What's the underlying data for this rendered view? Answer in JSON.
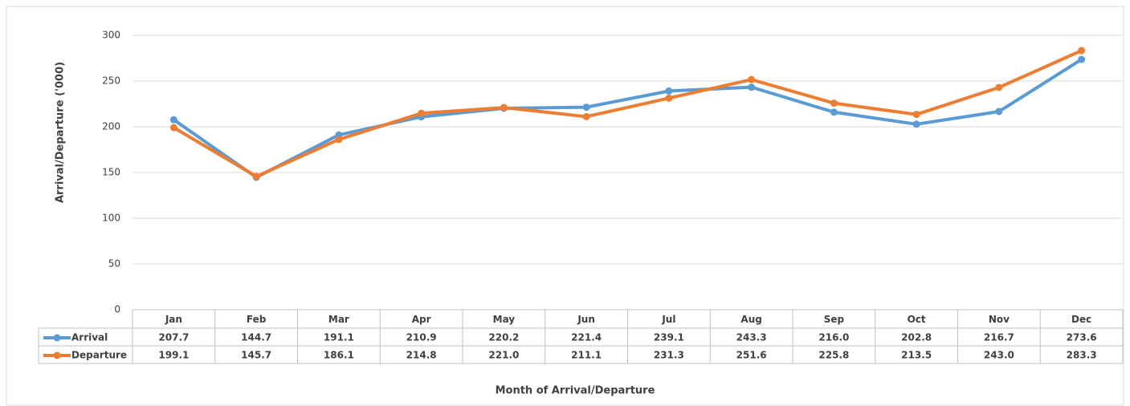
{
  "chart_data": {
    "type": "line",
    "y_label": "Arrival/Departure ('000)",
    "x_label": "Month of Arrival/Departure",
    "categories": [
      "Jan",
      "Feb",
      "Mar",
      "Apr",
      "May",
      "Jun",
      "Jul",
      "Aug",
      "Sep",
      "Oct",
      "Nov",
      "Dec"
    ],
    "series": [
      {
        "name": "Arrival",
        "color": "#5b9bd5",
        "values": [
          207.7,
          144.7,
          191.1,
          210.9,
          220.2,
          221.4,
          239.1,
          243.3,
          216,
          202.8,
          216.7,
          273.6
        ],
        "value_labels": [
          "207.7",
          "144.7",
          "191.1",
          "210.9",
          "220.2",
          "221.4",
          "239.1",
          "243.3",
          "216.0",
          "202.8",
          "216.7",
          "273.6"
        ]
      },
      {
        "name": "Departure",
        "color": "#ed7d31",
        "values": [
          199.1,
          145.7,
          186.1,
          214.8,
          221,
          211.1,
          231.3,
          251.6,
          225.8,
          213.5,
          243,
          283.3
        ],
        "value_labels": [
          "199.1",
          "145.7",
          "186.1",
          "214.8",
          "221.0",
          "211.1",
          "231.3",
          "251.6",
          "225.8",
          "213.5",
          "243.0",
          "283.3"
        ]
      }
    ],
    "ylim": [
      0,
      300
    ],
    "yticks": [
      0,
      50,
      100,
      150,
      200,
      250,
      300
    ],
    "grid": true
  }
}
